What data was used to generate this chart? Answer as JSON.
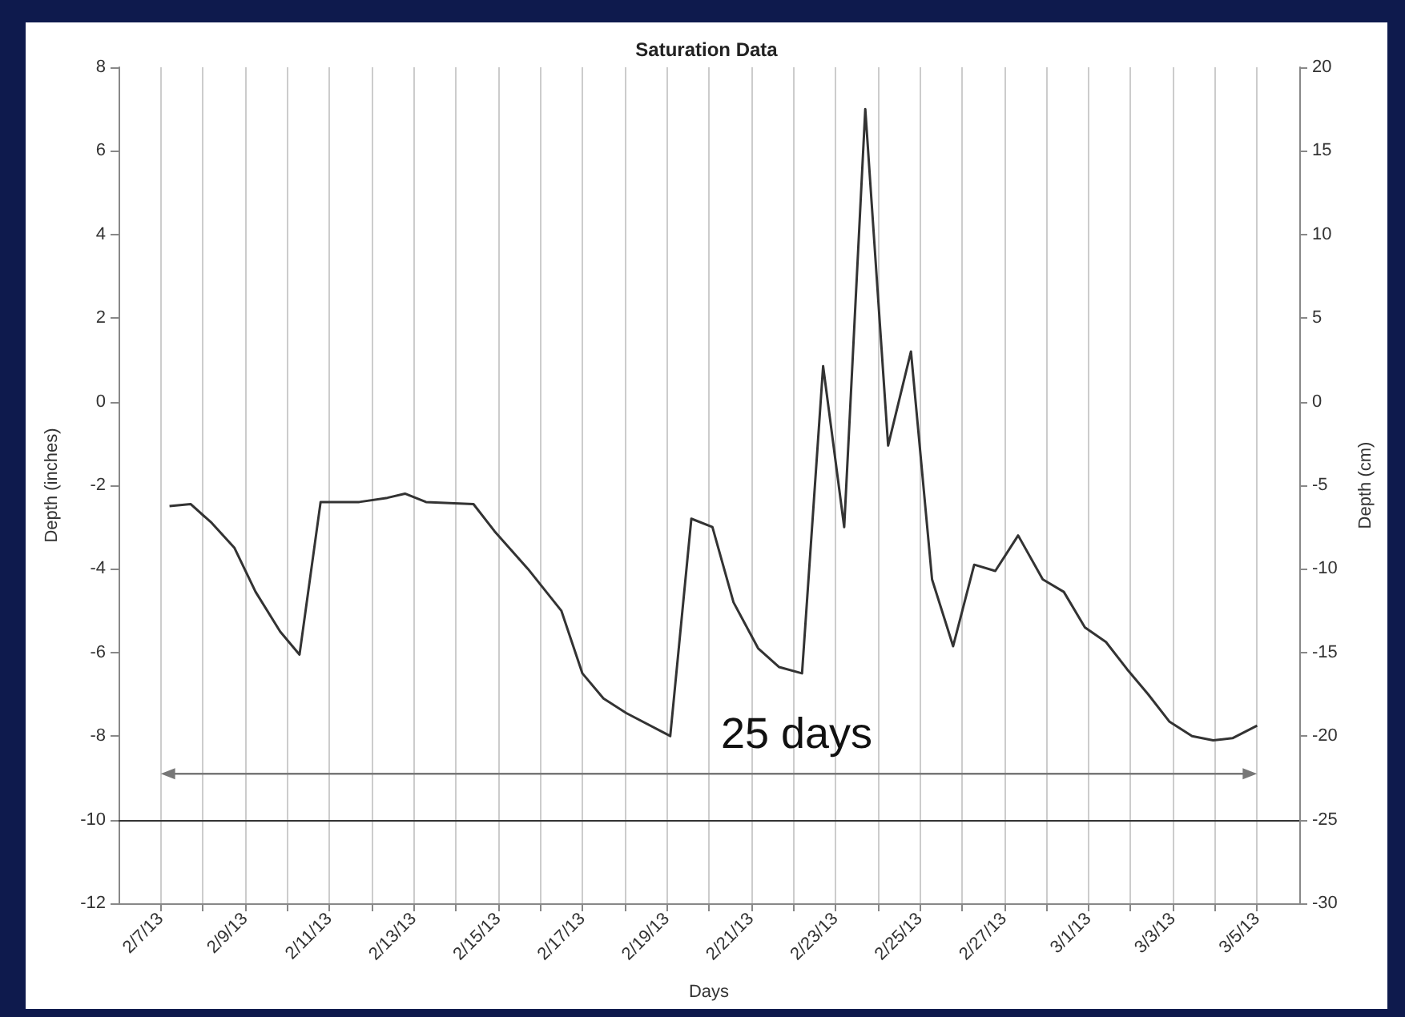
{
  "chart_data": {
    "type": "line",
    "title": "Saturation Data",
    "xlabel": "Days",
    "ylabel": "Depth (inches)",
    "y2label": "Depth (cm)",
    "x": [
      "--02-07T05:00",
      "--02-07T17:00",
      "--02-08T05:00",
      "--02-08T18:00",
      "--02-09T06:00",
      "--02-09T20:00",
      "--02-10T07:00",
      "--02-10T19:00",
      "--02-11T17:00",
      "--02-12T09:00",
      "--02-12T19:00",
      "--02-13T07:00",
      "--02-14T10:00",
      "--02-14T22:00",
      "--02-15T17:00",
      "--02-16T12:00",
      "--02-17T00:00",
      "--02-17T12:00",
      "--02-18T01:00",
      "--02-19T02:00",
      "--02-19T14:00",
      "--02-20T02:00",
      "--02-20T14:00",
      "--02-21T04:00",
      "--02-21T16:00",
      "--02-22T05:00",
      "--02-22T17:00",
      "--02-23T05:00",
      "--02-23T17:00",
      "--02-24T06:00",
      "--02-24T19:00",
      "--02-25T07:00",
      "--02-25T19:00",
      "--02-26T07:00",
      "--02-26T19:00",
      "--02-27T08:00",
      "--02-27T22:00",
      "--02-28T10:00",
      "--02-28T22:00",
      "--03-01T10:00",
      "--03-01T22:00",
      "--03-02T10:00",
      "--03-02T22:00",
      "--03-03T11:00",
      "--03-03T23:00",
      "--03-04T10:00",
      "--03-05T00:00"
    ],
    "series": [
      {
        "color": "#333333",
        "values": [
          -2.5,
          -2.45,
          -2.9,
          -3.5,
          -4.55,
          -5.5,
          -6.05,
          -2.4,
          -2.4,
          -2.3,
          -2.2,
          -2.4,
          -2.45,
          -3.1,
          -4.0,
          -5.0,
          -6.5,
          -7.1,
          -7.45,
          -8.0,
          -2.8,
          -3.0,
          -4.8,
          -5.9,
          -6.35,
          -6.5,
          0.85,
          -3.0,
          7.0,
          -1.05,
          1.2,
          -4.25,
          -5.85,
          -3.9,
          -4.05,
          -3.2,
          -4.25,
          -4.55,
          -5.4,
          -5.75,
          -6.4,
          -7.0,
          -7.65,
          -8.0,
          -8.1,
          -8.05,
          -7.75
        ]
      }
    ],
    "xlim": [
      "--02-06",
      "--03-06"
    ],
    "xticks": [
      {
        "value": "--02-07",
        "label": "2/7/13"
      },
      {
        "value": "--02-08",
        "label": null
      },
      {
        "value": "--02-09",
        "label": "2/9/13"
      },
      {
        "value": "--02-10",
        "label": null
      },
      {
        "value": "--02-11",
        "label": "2/11/13"
      },
      {
        "value": "--02-12",
        "label": null
      },
      {
        "value": "--02-13",
        "label": "2/13/13"
      },
      {
        "value": "--02-14",
        "label": null
      },
      {
        "value": "--02-15",
        "label": "2/15/13"
      },
      {
        "value": "--02-16",
        "label": null
      },
      {
        "value": "--02-17",
        "label": "2/17/13"
      },
      {
        "value": "--02-18",
        "label": null
      },
      {
        "value": "--02-19",
        "label": "2/19/13"
      },
      {
        "value": "--02-20",
        "label": null
      },
      {
        "value": "--02-21",
        "label": "2/21/13"
      },
      {
        "value": "--02-22",
        "label": null
      },
      {
        "value": "--02-23",
        "label": "2/23/13"
      },
      {
        "value": "--02-24",
        "label": null
      },
      {
        "value": "--02-25",
        "label": "2/25/13"
      },
      {
        "value": "--02-26",
        "label": null
      },
      {
        "value": "--02-27",
        "label": "2/27/13"
      },
      {
        "value": "--02-28",
        "label": null
      },
      {
        "value": "--03-01",
        "label": "3/1/13"
      },
      {
        "value": "--03-02",
        "label": null
      },
      {
        "value": "--03-03",
        "label": "3/3/13"
      },
      {
        "value": "--03-04",
        "label": null
      },
      {
        "value": "--03-05",
        "label": "3/5/13"
      }
    ],
    "ylim": [
      -12,
      8
    ],
    "yticks": [
      -12,
      -10,
      -8,
      -6,
      -4,
      -2,
      0,
      2,
      4,
      6,
      8
    ],
    "y2lim": [
      -30,
      20
    ],
    "y2ticks": [
      -30,
      -25,
      -20,
      -15,
      -10,
      -5,
      0,
      5,
      10,
      15,
      20
    ],
    "ref_lines": [
      {
        "axis": "y",
        "value": -10,
        "color": "#333333"
      }
    ],
    "annotations": [
      "25 days"
    ],
    "grid": "x",
    "marker": "none",
    "line_style": "solid"
  }
}
